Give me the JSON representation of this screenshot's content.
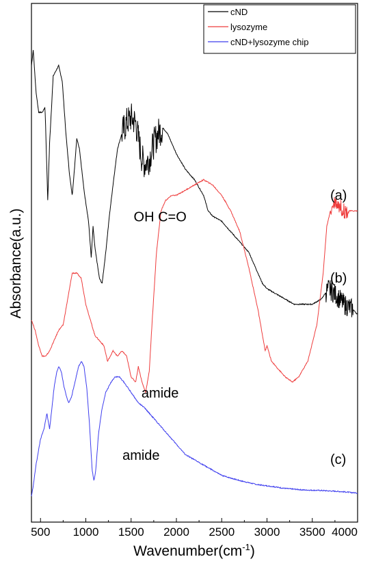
{
  "chart_data": {
    "type": "line",
    "title": "",
    "xlabel_main": "Wavenumber(cm",
    "xlabel_sup": "-1",
    "xlabel_close": ")",
    "ylabel": "Absorbance(a.u.)",
    "xlim": [
      400,
      4000
    ],
    "xticks": [
      500,
      1000,
      1500,
      2000,
      2500,
      3000,
      3500,
      4000
    ],
    "xtick_labels": [
      "500",
      "1000",
      "1500",
      "2000",
      "2500",
      "3000",
      "3500",
      "4000"
    ],
    "y_ticks_shown": false,
    "ylim": [
      0,
      100
    ],
    "legend_position": "top-right",
    "series": [
      {
        "name": "cND",
        "color": "#000000",
        "label": "(a)",
        "noise": {
          "ranges": [
            [
              1400,
              1850,
              6
            ],
            [
              3650,
              3950,
              4
            ]
          ]
        },
        "points": [
          [
            400,
            88
          ],
          [
            420,
            91
          ],
          [
            450,
            83
          ],
          [
            480,
            79
          ],
          [
            520,
            79
          ],
          [
            550,
            80
          ],
          [
            560,
            74
          ],
          [
            580,
            62
          ],
          [
            600,
            73
          ],
          [
            640,
            86
          ],
          [
            700,
            88
          ],
          [
            740,
            85
          ],
          [
            780,
            75
          ],
          [
            820,
            67
          ],
          [
            850,
            63
          ],
          [
            870,
            67
          ],
          [
            900,
            74
          ],
          [
            930,
            72
          ],
          [
            980,
            64
          ],
          [
            1030,
            58
          ],
          [
            1060,
            51
          ],
          [
            1080,
            57
          ],
          [
            1100,
            53
          ],
          [
            1150,
            47
          ],
          [
            1180,
            46
          ],
          [
            1220,
            52
          ],
          [
            1260,
            59
          ],
          [
            1300,
            65
          ],
          [
            1350,
            72
          ],
          [
            1400,
            75
          ],
          [
            1450,
            77
          ],
          [
            1500,
            78
          ],
          [
            1550,
            77
          ],
          [
            1580,
            74
          ],
          [
            1620,
            70
          ],
          [
            1650,
            69
          ],
          [
            1700,
            70
          ],
          [
            1750,
            73
          ],
          [
            1800,
            75
          ],
          [
            1850,
            76
          ],
          [
            1900,
            75
          ],
          [
            2000,
            71
          ],
          [
            2100,
            68
          ],
          [
            2200,
            66
          ],
          [
            2300,
            63
          ],
          [
            2350,
            60
          ],
          [
            2400,
            59
          ],
          [
            2500,
            58
          ],
          [
            2600,
            56
          ],
          [
            2700,
            54
          ],
          [
            2800,
            52
          ],
          [
            2900,
            48
          ],
          [
            2950,
            46
          ],
          [
            3000,
            45
          ],
          [
            3100,
            44
          ],
          [
            3200,
            43
          ],
          [
            3300,
            42
          ],
          [
            3400,
            42
          ],
          [
            3500,
            42
          ],
          [
            3600,
            43
          ],
          [
            3680,
            45
          ],
          [
            3750,
            44
          ],
          [
            3850,
            42
          ],
          [
            3950,
            41
          ],
          [
            4000,
            40
          ]
        ]
      },
      {
        "name": "lysozyme",
        "color": "#ee3b3b",
        "label": "(b)",
        "noise": {
          "ranges": [
            [
              3700,
              3900,
              3
            ]
          ]
        },
        "points": [
          [
            400,
            39
          ],
          [
            440,
            37
          ],
          [
            480,
            34
          ],
          [
            520,
            32
          ],
          [
            560,
            32
          ],
          [
            600,
            33
          ],
          [
            650,
            35
          ],
          [
            700,
            37
          ],
          [
            750,
            38
          ],
          [
            800,
            43
          ],
          [
            850,
            48
          ],
          [
            900,
            48
          ],
          [
            950,
            47
          ],
          [
            1000,
            42
          ],
          [
            1050,
            39
          ],
          [
            1100,
            36
          ],
          [
            1150,
            35
          ],
          [
            1200,
            34
          ],
          [
            1240,
            31
          ],
          [
            1300,
            33
          ],
          [
            1350,
            32
          ],
          [
            1400,
            33
          ],
          [
            1450,
            32
          ],
          [
            1500,
            28
          ],
          [
            1550,
            27
          ],
          [
            1580,
            30
          ],
          [
            1620,
            27
          ],
          [
            1660,
            25
          ],
          [
            1700,
            29
          ],
          [
            1730,
            38
          ],
          [
            1780,
            52
          ],
          [
            1830,
            60
          ],
          [
            1880,
            62
          ],
          [
            1950,
            63
          ],
          [
            2000,
            63
          ],
          [
            2100,
            64
          ],
          [
            2200,
            65
          ],
          [
            2300,
            66
          ],
          [
            2400,
            65
          ],
          [
            2500,
            63
          ],
          [
            2600,
            60
          ],
          [
            2700,
            56
          ],
          [
            2800,
            49
          ],
          [
            2900,
            41
          ],
          [
            2950,
            36
          ],
          [
            2980,
            33
          ],
          [
            3000,
            34
          ],
          [
            3050,
            31
          ],
          [
            3100,
            30
          ],
          [
            3200,
            28
          ],
          [
            3280,
            27
          ],
          [
            3350,
            28
          ],
          [
            3450,
            31
          ],
          [
            3550,
            38
          ],
          [
            3620,
            48
          ],
          [
            3660,
            57
          ],
          [
            3700,
            60
          ],
          [
            3750,
            62
          ],
          [
            3800,
            61
          ],
          [
            3850,
            60
          ],
          [
            3900,
            60
          ],
          [
            4000,
            60
          ]
        ]
      },
      {
        "name": "cND+lysozyme chip",
        "color": "#3c3cee",
        "label": "(c)",
        "noise": {
          "ranges": []
        },
        "points": [
          [
            400,
            5
          ],
          [
            420,
            7
          ],
          [
            450,
            11
          ],
          [
            500,
            16
          ],
          [
            540,
            18
          ],
          [
            570,
            21
          ],
          [
            600,
            18
          ],
          [
            620,
            21
          ],
          [
            650,
            26
          ],
          [
            680,
            29
          ],
          [
            700,
            30
          ],
          [
            730,
            29
          ],
          [
            760,
            26
          ],
          [
            790,
            24
          ],
          [
            810,
            23
          ],
          [
            840,
            24
          ],
          [
            880,
            27
          ],
          [
            920,
            30
          ],
          [
            950,
            31
          ],
          [
            980,
            30
          ],
          [
            1010,
            26
          ],
          [
            1040,
            19
          ],
          [
            1070,
            10
          ],
          [
            1090,
            8
          ],
          [
            1110,
            10
          ],
          [
            1140,
            17
          ],
          [
            1180,
            22
          ],
          [
            1220,
            25
          ],
          [
            1280,
            27
          ],
          [
            1320,
            28
          ],
          [
            1370,
            28
          ],
          [
            1420,
            27
          ],
          [
            1500,
            25
          ],
          [
            1580,
            23
          ],
          [
            1650,
            22
          ],
          [
            1700,
            21
          ],
          [
            1800,
            19
          ],
          [
            1900,
            17
          ],
          [
            2000,
            15
          ],
          [
            2100,
            13
          ],
          [
            2200,
            12
          ],
          [
            2300,
            11
          ],
          [
            2400,
            10
          ],
          [
            2500,
            9
          ],
          [
            2600,
            8.5
          ],
          [
            2700,
            8
          ],
          [
            2800,
            7.6
          ],
          [
            2900,
            7.2
          ],
          [
            3000,
            7
          ],
          [
            3200,
            6.5
          ],
          [
            3400,
            6.2
          ],
          [
            3600,
            6.1
          ],
          [
            3800,
            5.9
          ],
          [
            4000,
            5.6
          ]
        ]
      }
    ],
    "annotations": [
      {
        "text": "OH C=O",
        "x": 1820,
        "y": 58
      },
      {
        "text": "amide",
        "x": 1820,
        "y": 24
      },
      {
        "text": "amide",
        "x": 1610,
        "y": 12
      }
    ]
  }
}
